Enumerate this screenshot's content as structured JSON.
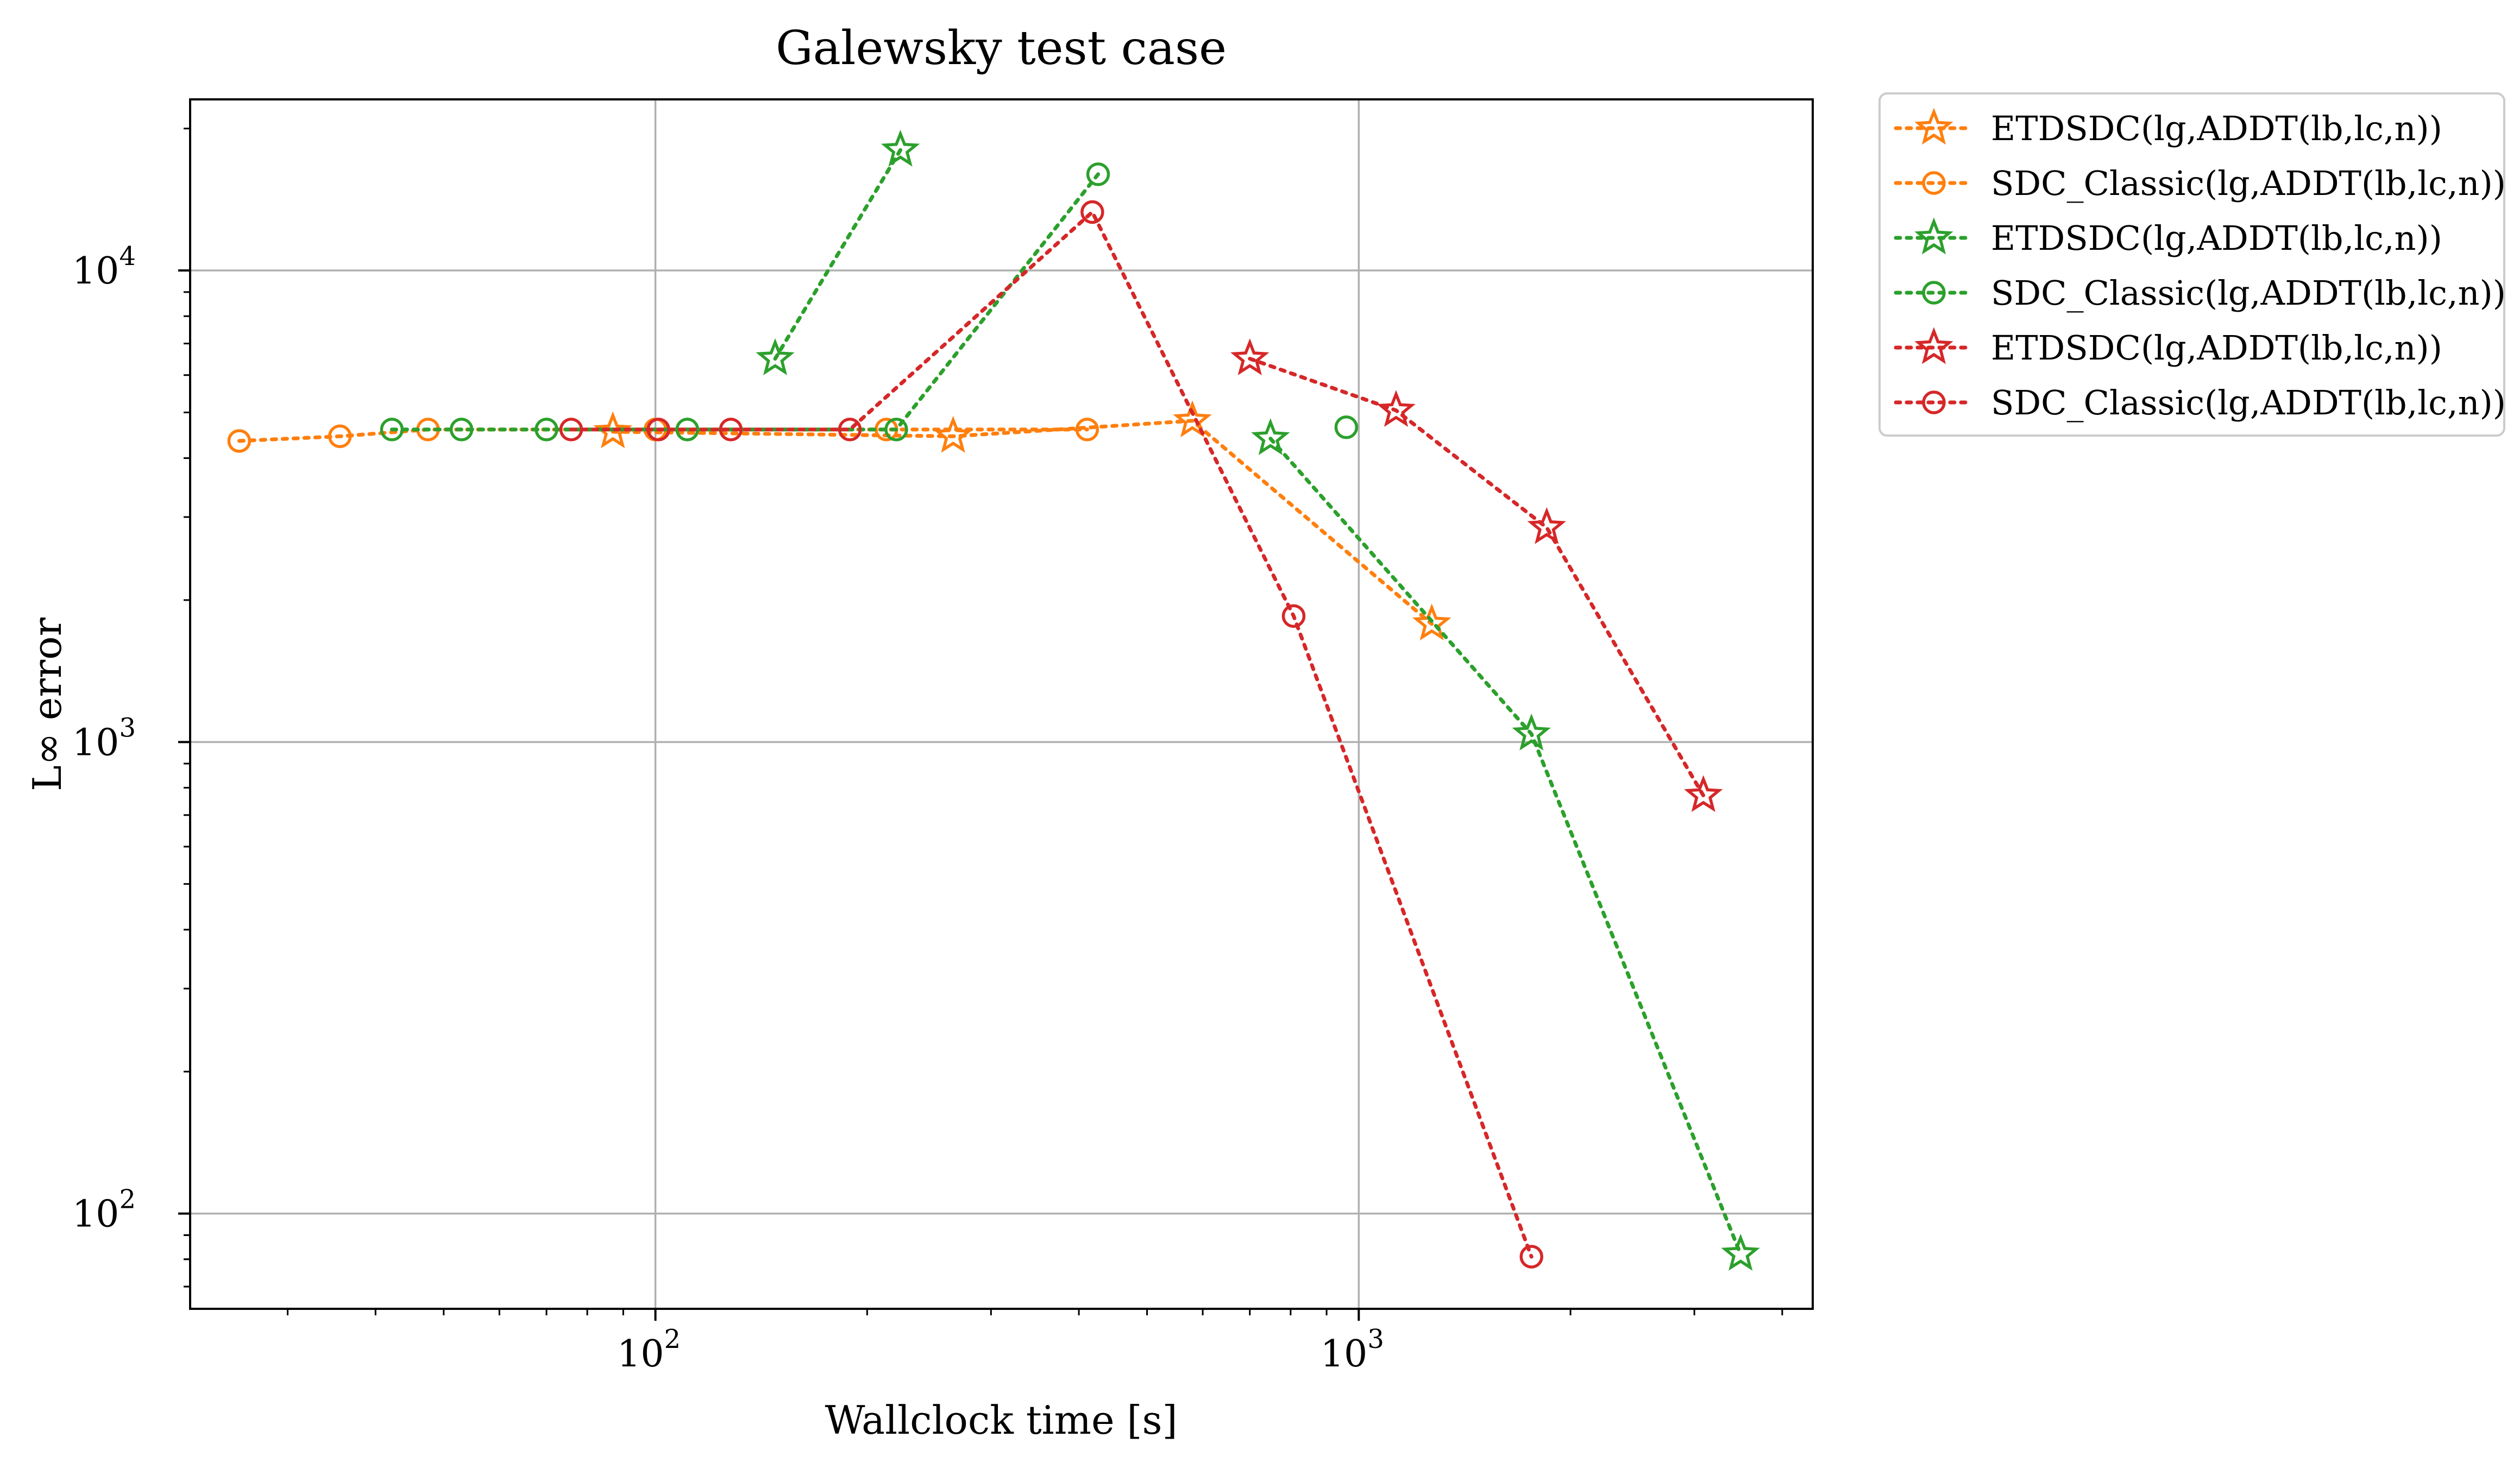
{
  "chart_data": {
    "type": "scatter",
    "title": "Galewsky test case",
    "xlabel": "Wallclock time [s]",
    "ylabel": "L∞ error",
    "xscale": "log",
    "yscale": "log",
    "xlim": [
      21.8,
      4420
    ],
    "ylim": [
      62.8,
      23060
    ],
    "grid": true,
    "legend_position": "outside-top-right",
    "x_ticks": [
      {
        "value": 100,
        "base": "10",
        "exp": "2"
      },
      {
        "value": 1000,
        "base": "10",
        "exp": "3"
      }
    ],
    "y_ticks": [
      {
        "value": 100,
        "base": "10",
        "exp": "2"
      },
      {
        "value": 1000,
        "base": "10",
        "exp": "3"
      },
      {
        "value": 10000,
        "base": "10",
        "exp": "4"
      }
    ],
    "series": [
      {
        "name": "ETDSDC(lg,ADDT(lb,lc,n))",
        "color": "#ff7f0e",
        "marker": "star",
        "x": [
          87,
          265,
          580,
          1270
        ],
        "y": [
          4550,
          4450,
          4800,
          1780
        ]
      },
      {
        "name": "SDC_Classic(lg,ADDT(lb,lc,n))",
        "color": "#ff7f0e",
        "marker": "circle",
        "x": [
          25.6,
          35.6,
          47.5,
          100,
          213,
          411
        ],
        "y": [
          4350,
          4450,
          4600,
          4600,
          4600,
          4600
        ]
      },
      {
        "name": "ETDSDC(lg,ADDT(lb,lc,n))",
        "color": "#2ca02c",
        "marker": "star",
        "x": [
          148,
          223
        ],
        "y": [
          6500,
          18000
        ]
      },
      {
        "name": "SDC_Classic(lg,ADDT(lb,lc,n))",
        "color": "#2ca02c",
        "marker": "circle",
        "x": [
          42.2,
          53.0,
          70.0,
          111,
          220,
          426
        ],
        "y": [
          4600,
          4600,
          4600,
          4600,
          4600,
          16000
        ]
      },
      {
        "name": "ETDSDC(lg,ADDT(lb,lc,n))",
        "color": "#2ca02c",
        "marker": "star",
        "x": [
          749,
          1760,
          3490
        ],
        "y": [
          4400,
          1040,
          82
        ]
      },
      {
        "name": "SDC_Classic(lg,ADDT(lb,lc,n))",
        "color": "#2ca02c",
        "marker": "circle",
        "x": [
          960
        ],
        "y": [
          4650
        ]
      },
      {
        "name": "ETDSDC(lg,ADDT(lb,lc,n))",
        "color": "#d62728",
        "marker": "star",
        "x": [
          700,
          1130,
          1850,
          3090
        ],
        "y": [
          6500,
          5050,
          2850,
          770
        ]
      },
      {
        "name": "SDC_Classic(lg,ADDT(lb,lc,n))",
        "color": "#d62728",
        "marker": "circle",
        "x": [
          75.9,
          101,
          128,
          189,
          418,
          808,
          1760
        ],
        "y": [
          4600,
          4600,
          4600,
          4600,
          13300,
          1850,
          81
        ]
      }
    ],
    "legend": [
      {
        "label": "ETDSDC(lg,ADDT(lb,lc,n))",
        "color": "#ff7f0e",
        "marker": "star"
      },
      {
        "label": "SDC_Classic(lg,ADDT(lb,lc,n))",
        "color": "#ff7f0e",
        "marker": "circle"
      },
      {
        "label": "ETDSDC(lg,ADDT(lb,lc,n))",
        "color": "#2ca02c",
        "marker": "star"
      },
      {
        "label": "SDC_Classic(lg,ADDT(lb,lc,n))",
        "color": "#2ca02c",
        "marker": "circle"
      },
      {
        "label": "ETDSDC(lg,ADDT(lb,lc,n))",
        "color": "#d62728",
        "marker": "star"
      },
      {
        "label": "SDC_Classic(lg,ADDT(lb,lc,n))",
        "color": "#d62728",
        "marker": "circle"
      }
    ],
    "colors": {
      "grid": "#b0b0b0",
      "axes": "#000000",
      "legend_border": "#cccccc"
    }
  }
}
